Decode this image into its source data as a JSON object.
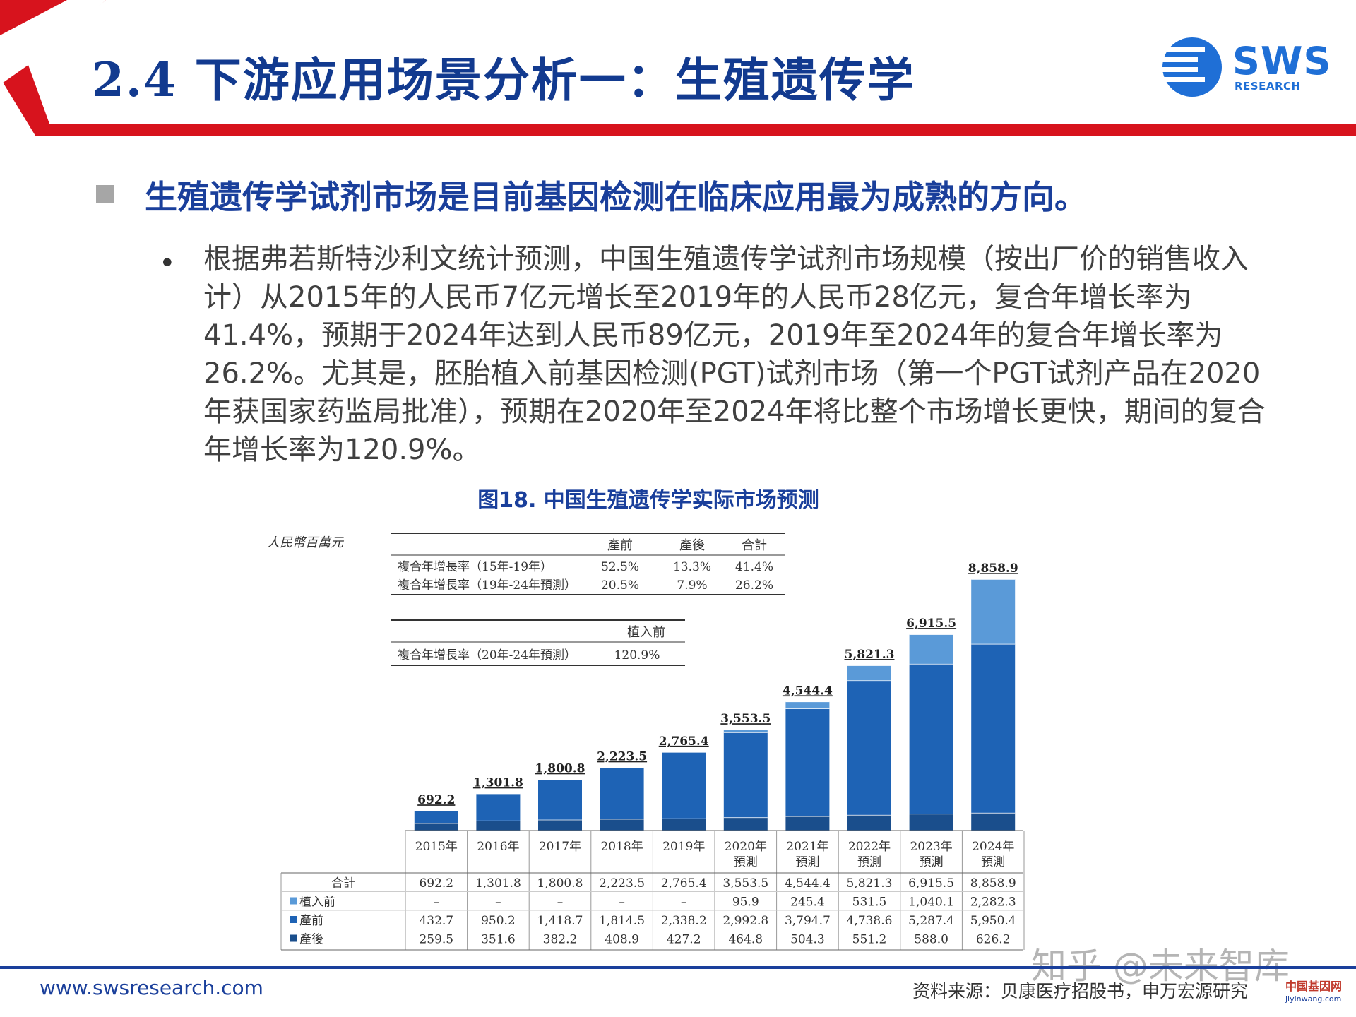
{
  "header": {
    "title": "2.4 下游应用场景分析一：生殖遗传学"
  },
  "logo": {
    "text": "SWS",
    "sub": "RESEARCH"
  },
  "headline": "生殖遗传学试剂市场是目前基因检测在临床应用最为成熟的方向。",
  "bullet_char": "•",
  "paragraph": "根据弗若斯特沙利文统计预测，中国生殖遗传学试剂市场规模（按出厂价的销售收入计）从2015年的人民币7亿元增长至2019年的人民币28亿元，复合年增长率为41.4%，预期于2024年达到人民币89亿元，2019年至2024年的复合年增长率为26.2%。尤其是，胚胎植入前基因检测(PGT)试剂市场（第一个PGT试剂产品在2020年获国家药监局批准），预期在2020年至2024年将比整个市场增长更快，期间的复合年增长率为120.9%。",
  "figure_title": "图18. 中国生殖遗传学实际市场预测",
  "chart_data": {
    "type": "bar",
    "stacked": true,
    "unit_label": "人民幣百萬元",
    "categories": [
      [
        "2015年"
      ],
      [
        "2016年"
      ],
      [
        "2017年"
      ],
      [
        "2018年"
      ],
      [
        "2019年"
      ],
      [
        "2020年",
        "預測"
      ],
      [
        "2021年",
        "預測"
      ],
      [
        "2022年",
        "預測"
      ],
      [
        "2023年",
        "預測"
      ],
      [
        "2024年",
        "預測"
      ]
    ],
    "totals": [
      "692.2",
      "1,301.8",
      "1,800.8",
      "2,223.5",
      "2,765.4",
      "3,553.5",
      "4,544.4",
      "5,821.3",
      "6,915.5",
      "8,858.9"
    ],
    "series": [
      {
        "name": "產後",
        "color": "#1a4e8c",
        "values": [
          259.5,
          351.6,
          382.2,
          408.9,
          427.2,
          464.8,
          504.3,
          551.2,
          588.0,
          626.2
        ],
        "labels": [
          "259.5",
          "351.6",
          "382.2",
          "408.9",
          "427.2",
          "464.8",
          "504.3",
          "551.2",
          "588.0",
          "626.2"
        ]
      },
      {
        "name": "產前",
        "color": "#1e63b5",
        "values": [
          432.7,
          950.2,
          1418.7,
          1814.5,
          2338.2,
          2992.8,
          3794.7,
          4738.6,
          5287.4,
          5950.4
        ],
        "labels": [
          "432.7",
          "950.2",
          "1,418.7",
          "1,814.5",
          "2,338.2",
          "2,992.8",
          "3,794.7",
          "4,738.6",
          "5,287.4",
          "5,950.4"
        ]
      },
      {
        "name": "植入前",
        "color": "#5a9ad8",
        "values": [
          0,
          0,
          0,
          0,
          0,
          95.9,
          245.4,
          531.5,
          1040.1,
          2282.3
        ],
        "labels": [
          "–",
          "–",
          "–",
          "–",
          "–",
          "95.9",
          "245.4",
          "531.5",
          "1,040.1",
          "2,282.3"
        ]
      }
    ],
    "table_row_order": [
      "植入前",
      "產前",
      "產後"
    ],
    "total_row_label": "合計",
    "cagr_table_1": {
      "headers": [
        "產前",
        "產後",
        "合計"
      ],
      "rows": [
        {
          "label": "複合年增長率（15年-19年）",
          "values": [
            "52.5%",
            "13.3%",
            "41.4%"
          ]
        },
        {
          "label": "複合年增長率（19年-24年預測）",
          "values": [
            "20.5%",
            "7.9%",
            "26.2%"
          ]
        }
      ]
    },
    "cagr_table_2": {
      "headers": [
        "植入前"
      ],
      "rows": [
        {
          "label": "複合年增長率（20年-24年預測）",
          "values": [
            "120.9%"
          ]
        }
      ]
    },
    "ylim": [
      0,
      9500
    ]
  },
  "footer": {
    "url": "www.swsresearch.com",
    "source": "资料来源：贝康医疗招股书，申万宏源研究"
  },
  "watermark": {
    "text": "知乎 @未来智库",
    "site": "中国基因网",
    "site_url": "jiyinwang.com"
  }
}
